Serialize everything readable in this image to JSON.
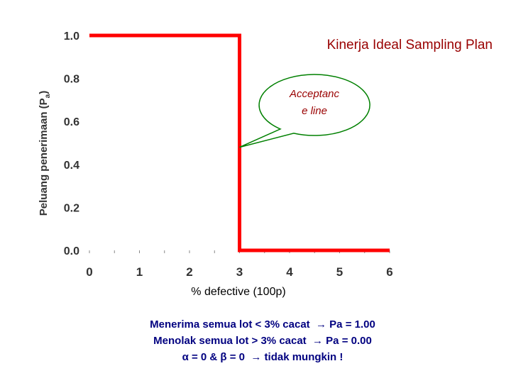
{
  "chart_data": {
    "type": "line",
    "title": "Kinerja Ideal Sampling Plan",
    "xlabel": "% defective (100p)",
    "ylabel_main": "Peluang penerimaan (P",
    "ylabel_sub": "a",
    "ylabel_close": ")",
    "xlim": [
      0,
      6
    ],
    "ylim": [
      0,
      1
    ],
    "x_ticks": [
      "0",
      "1",
      "2",
      "3",
      "4",
      "5",
      "6"
    ],
    "y_ticks": [
      "0.0",
      "0.2",
      "0.4",
      "0.6",
      "0.8",
      "1.0"
    ],
    "grid": false,
    "series": [
      {
        "x": [
          0,
          3,
          3,
          6
        ],
        "y": [
          1.0,
          1.0,
          0.0,
          0.0
        ],
        "color": "#ff0000"
      }
    ],
    "annotation": {
      "lines": [
        "Acceptanc",
        "e line"
      ],
      "points_to": [
        3,
        0.48
      ]
    }
  },
  "colors": {
    "series": "#ff0000",
    "title": "#990000",
    "annotation_text": "#990000",
    "annotation_border": "#008000",
    "axis_text": "#333333",
    "notes_text": "#000080"
  },
  "notes": [
    "Menerima semua lot < 3% cacat  → Pa = 1.00",
    "Menolak semua lot > 3% cacat  → Pa = 0.00",
    "α = 0 & β = 0  → tidak mungkin !"
  ]
}
